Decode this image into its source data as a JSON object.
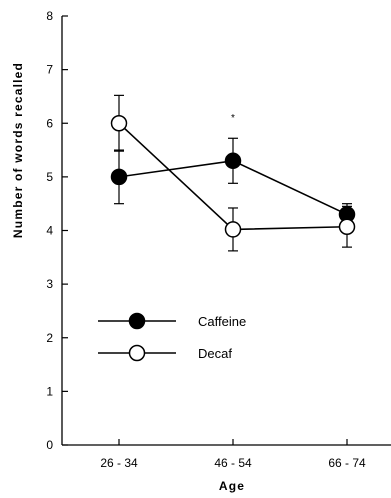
{
  "chart_data": {
    "type": "line",
    "xlabel": "Age",
    "ylabel": "Number  of  words  recalled",
    "categories": [
      "26 - 34",
      "46 - 54",
      "66 - 74"
    ],
    "ylim": [
      0,
      8
    ],
    "yticks": [
      "0",
      "1",
      "2",
      "3",
      "4",
      "5",
      "6",
      "7",
      "8"
    ],
    "grid": false,
    "legend_position": "lower-left",
    "annotation": "*",
    "series": [
      {
        "name": "Caffeine",
        "marker": "filled-circle",
        "color": "#000000",
        "values": [
          5.0,
          5.3,
          4.3
        ],
        "errors": [
          0.5,
          0.42,
          0.2
        ]
      },
      {
        "name": "Decaf",
        "marker": "open-circle",
        "color": "#000000",
        "values": [
          6.0,
          4.02,
          4.07
        ],
        "errors": [
          0.52,
          0.4,
          0.38
        ]
      }
    ]
  }
}
